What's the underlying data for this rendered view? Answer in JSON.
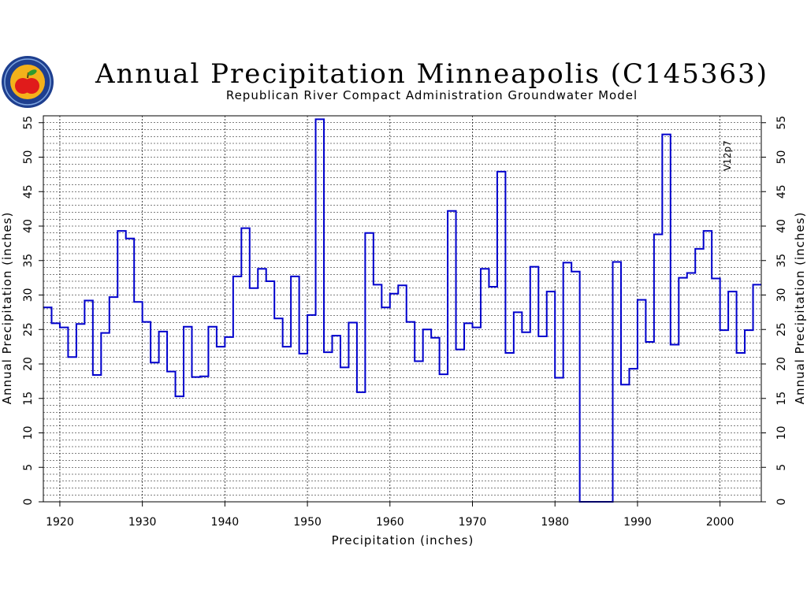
{
  "chart_data": {
    "type": "step-line",
    "title": "Annual Precipitation Minneapolis (C145363)",
    "subtitle": "Republican River Compact Administration Groundwater Model",
    "xlabel": "Precipitation (inches)",
    "ylabel": "Annual Precipitation (inches)",
    "ylabel_right": "Annual Precipitation (inches)",
    "version_label": "V12p7",
    "xlim": [
      1918,
      2005
    ],
    "ylim": [
      0,
      56
    ],
    "x_ticks": [
      1920,
      1930,
      1940,
      1950,
      1960,
      1970,
      1980,
      1990,
      2000
    ],
    "y_ticks": [
      0,
      5,
      10,
      15,
      20,
      25,
      30,
      35,
      40,
      45,
      50,
      55
    ],
    "minor_y_step": 1,
    "grid": true,
    "line_color": "#0000cc",
    "series": [
      {
        "x": [
          1918,
          1919,
          1920,
          1921,
          1922,
          1923,
          1924,
          1925,
          1926,
          1927,
          1928,
          1929,
          1930,
          1931,
          1932,
          1933,
          1934,
          1935,
          1936,
          1937,
          1938,
          1939,
          1940,
          1941,
          1942,
          1943,
          1944,
          1945,
          1946,
          1947,
          1948,
          1949,
          1950,
          1951,
          1952,
          1953,
          1954,
          1955,
          1956,
          1957,
          1958,
          1959,
          1960,
          1961,
          1962,
          1963,
          1964,
          1965,
          1966,
          1967,
          1968,
          1969,
          1970,
          1971,
          1972,
          1973,
          1974,
          1975,
          1976,
          1977,
          1978,
          1979,
          1980,
          1981,
          1982,
          1983,
          1984,
          1985,
          1986,
          1987,
          1988,
          1989,
          1990,
          1991,
          1992,
          1993,
          1994,
          1995,
          1996,
          1997,
          1998,
          1999,
          2000,
          2001,
          2002,
          2003,
          2004
        ],
        "values": [
          28.2,
          25.9,
          25.3,
          21.0,
          25.8,
          29.2,
          18.4,
          24.5,
          29.7,
          39.3,
          38.2,
          29.0,
          26.1,
          20.2,
          24.7,
          18.9,
          15.3,
          25.4,
          18.1,
          18.2,
          25.4,
          22.5,
          23.9,
          32.7,
          39.7,
          31.0,
          33.8,
          32.0,
          26.6,
          22.5,
          32.7,
          21.5,
          27.1,
          55.5,
          21.7,
          24.1,
          19.5,
          26.0,
          15.9,
          39.0,
          31.5,
          28.2,
          30.2,
          31.4,
          26.1,
          20.4,
          25.0,
          23.8,
          18.5,
          42.2,
          22.1,
          25.9,
          25.3,
          33.8,
          31.2,
          47.9,
          21.6,
          27.5,
          24.6,
          34.1,
          24.0,
          30.5,
          18.0,
          34.7,
          33.4,
          0,
          0,
          0,
          0,
          34.8,
          17.0,
          19.3,
          29.3,
          23.2,
          38.8,
          53.3,
          22.8,
          32.5,
          33.2,
          36.7,
          39.3,
          32.4,
          24.9,
          30.5,
          21.6,
          24.9,
          31.5
        ]
      }
    ]
  }
}
